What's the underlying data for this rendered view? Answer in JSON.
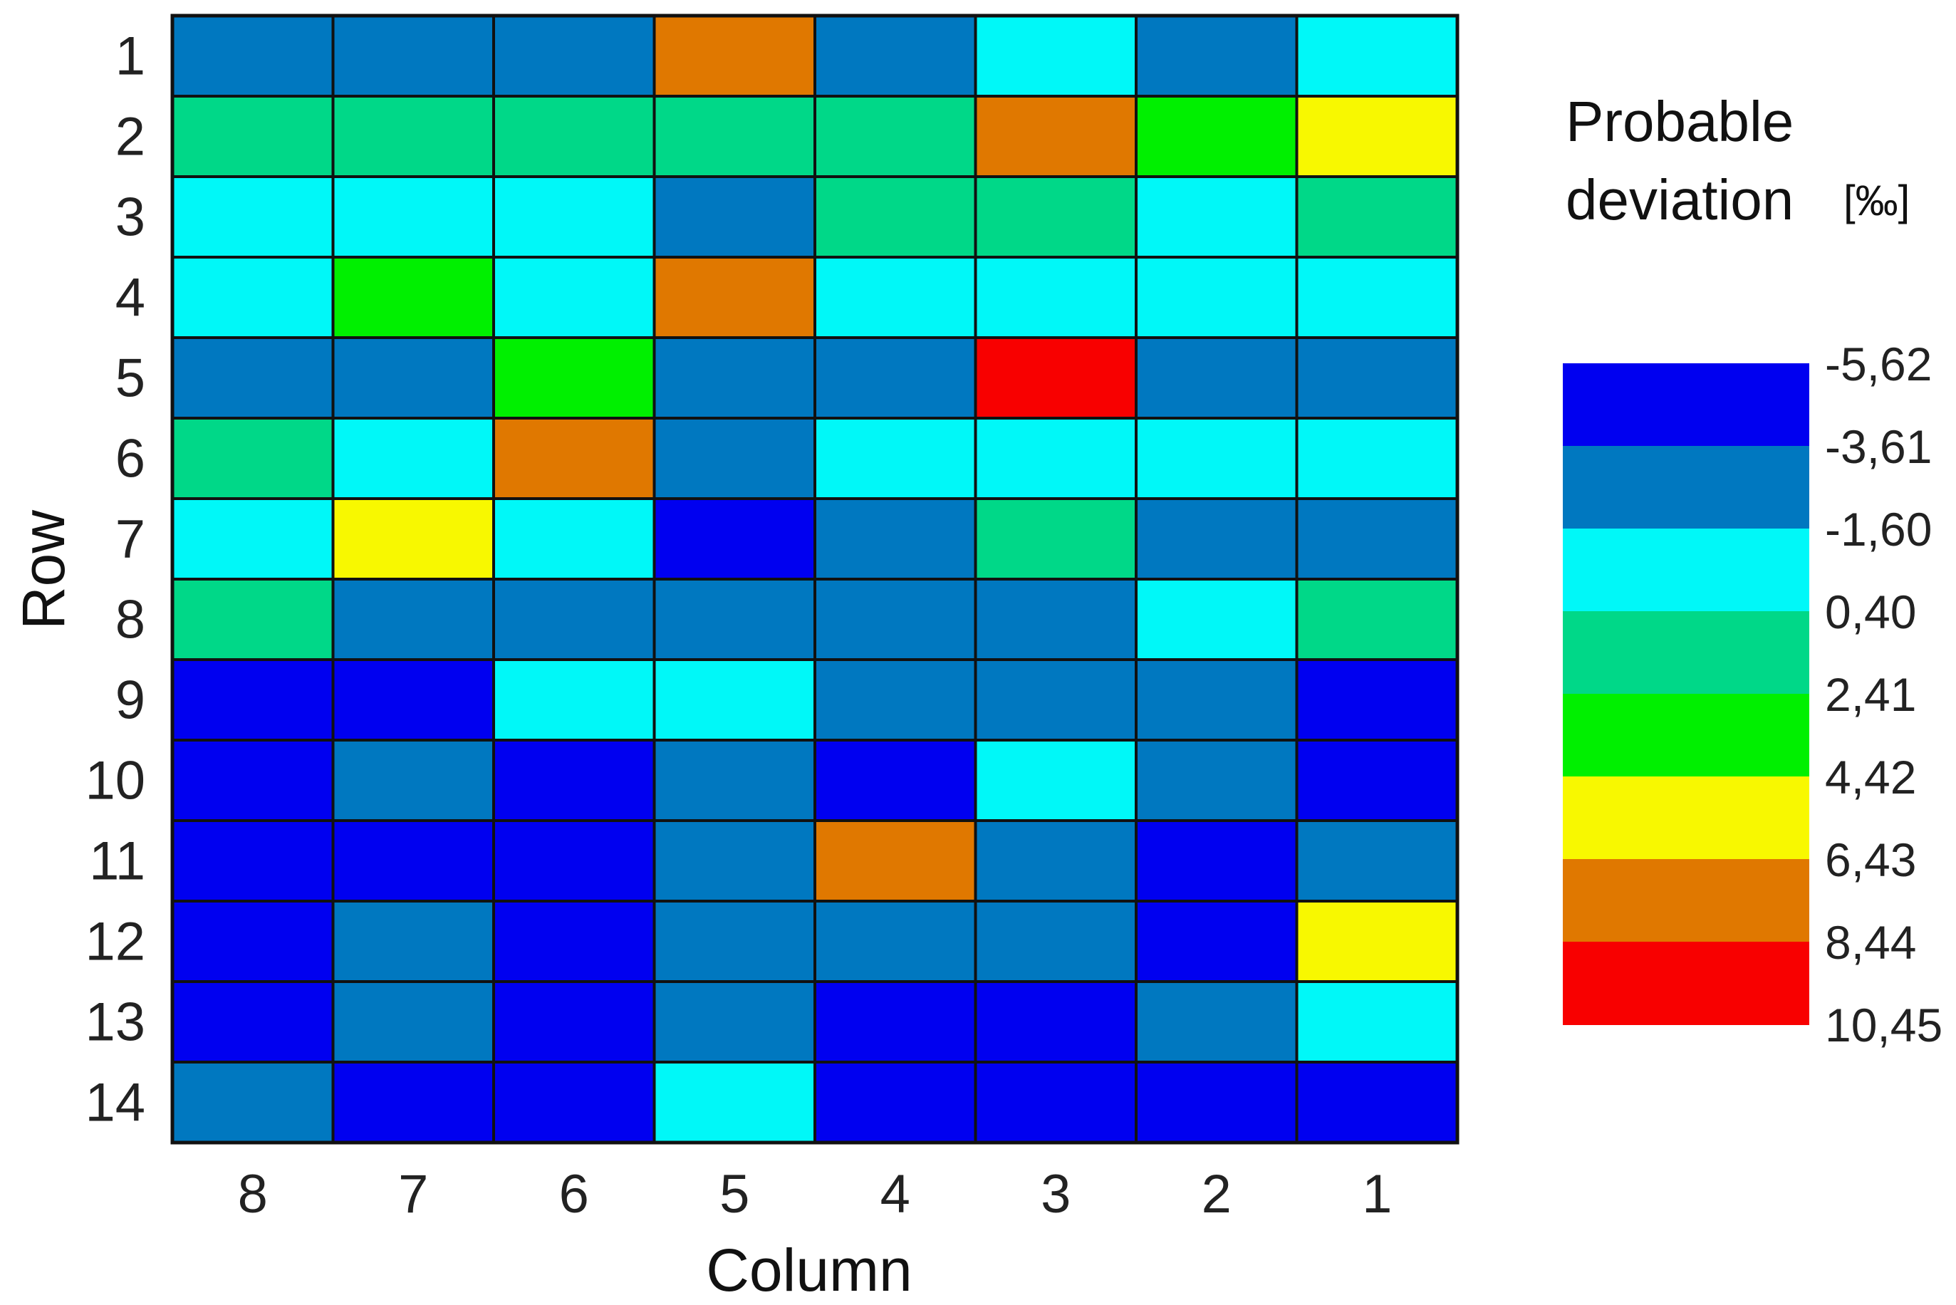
{
  "chart_data": {
    "type": "heatmap",
    "xlabel": "Column",
    "ylabel": "Row",
    "columns": [
      "8",
      "7",
      "6",
      "5",
      "4",
      "3",
      "2",
      "1"
    ],
    "rows": [
      "1",
      "2",
      "3",
      "4",
      "5",
      "6",
      "7",
      "8",
      "9",
      "10",
      "11",
      "12",
      "13",
      "14"
    ],
    "legend": {
      "title_line1": "Probable",
      "title_line2": "deviation",
      "unit": "[‰]",
      "boundaries": [
        "-5,62",
        "-3,61",
        "-1,60",
        "0,40",
        "2,41",
        "4,42",
        "6,43",
        "8,44",
        "10,45"
      ],
      "colors": [
        "#0000f0",
        "#0078c0",
        "#00f8f8",
        "#00d888",
        "#00f000",
        "#f8f800",
        "#e07800",
        "#f80000"
      ]
    },
    "cell_classes": [
      [
        1,
        1,
        1,
        6,
        1,
        2,
        1,
        2
      ],
      [
        3,
        3,
        3,
        3,
        3,
        6,
        4,
        5
      ],
      [
        2,
        2,
        2,
        1,
        3,
        3,
        2,
        3
      ],
      [
        2,
        4,
        2,
        6,
        2,
        2,
        2,
        2
      ],
      [
        1,
        1,
        4,
        1,
        1,
        7,
        1,
        1
      ],
      [
        3,
        2,
        6,
        1,
        2,
        2,
        2,
        2
      ],
      [
        2,
        5,
        2,
        0,
        1,
        3,
        1,
        1
      ],
      [
        3,
        1,
        1,
        1,
        1,
        1,
        2,
        3
      ],
      [
        0,
        0,
        2,
        2,
        1,
        1,
        1,
        0
      ],
      [
        0,
        1,
        0,
        1,
        0,
        2,
        1,
        0
      ],
      [
        0,
        0,
        0,
        1,
        6,
        1,
        0,
        1
      ],
      [
        0,
        1,
        0,
        1,
        1,
        1,
        0,
        5
      ],
      [
        0,
        1,
        0,
        1,
        0,
        0,
        1,
        2
      ],
      [
        1,
        0,
        0,
        2,
        0,
        0,
        0,
        0
      ]
    ]
  }
}
